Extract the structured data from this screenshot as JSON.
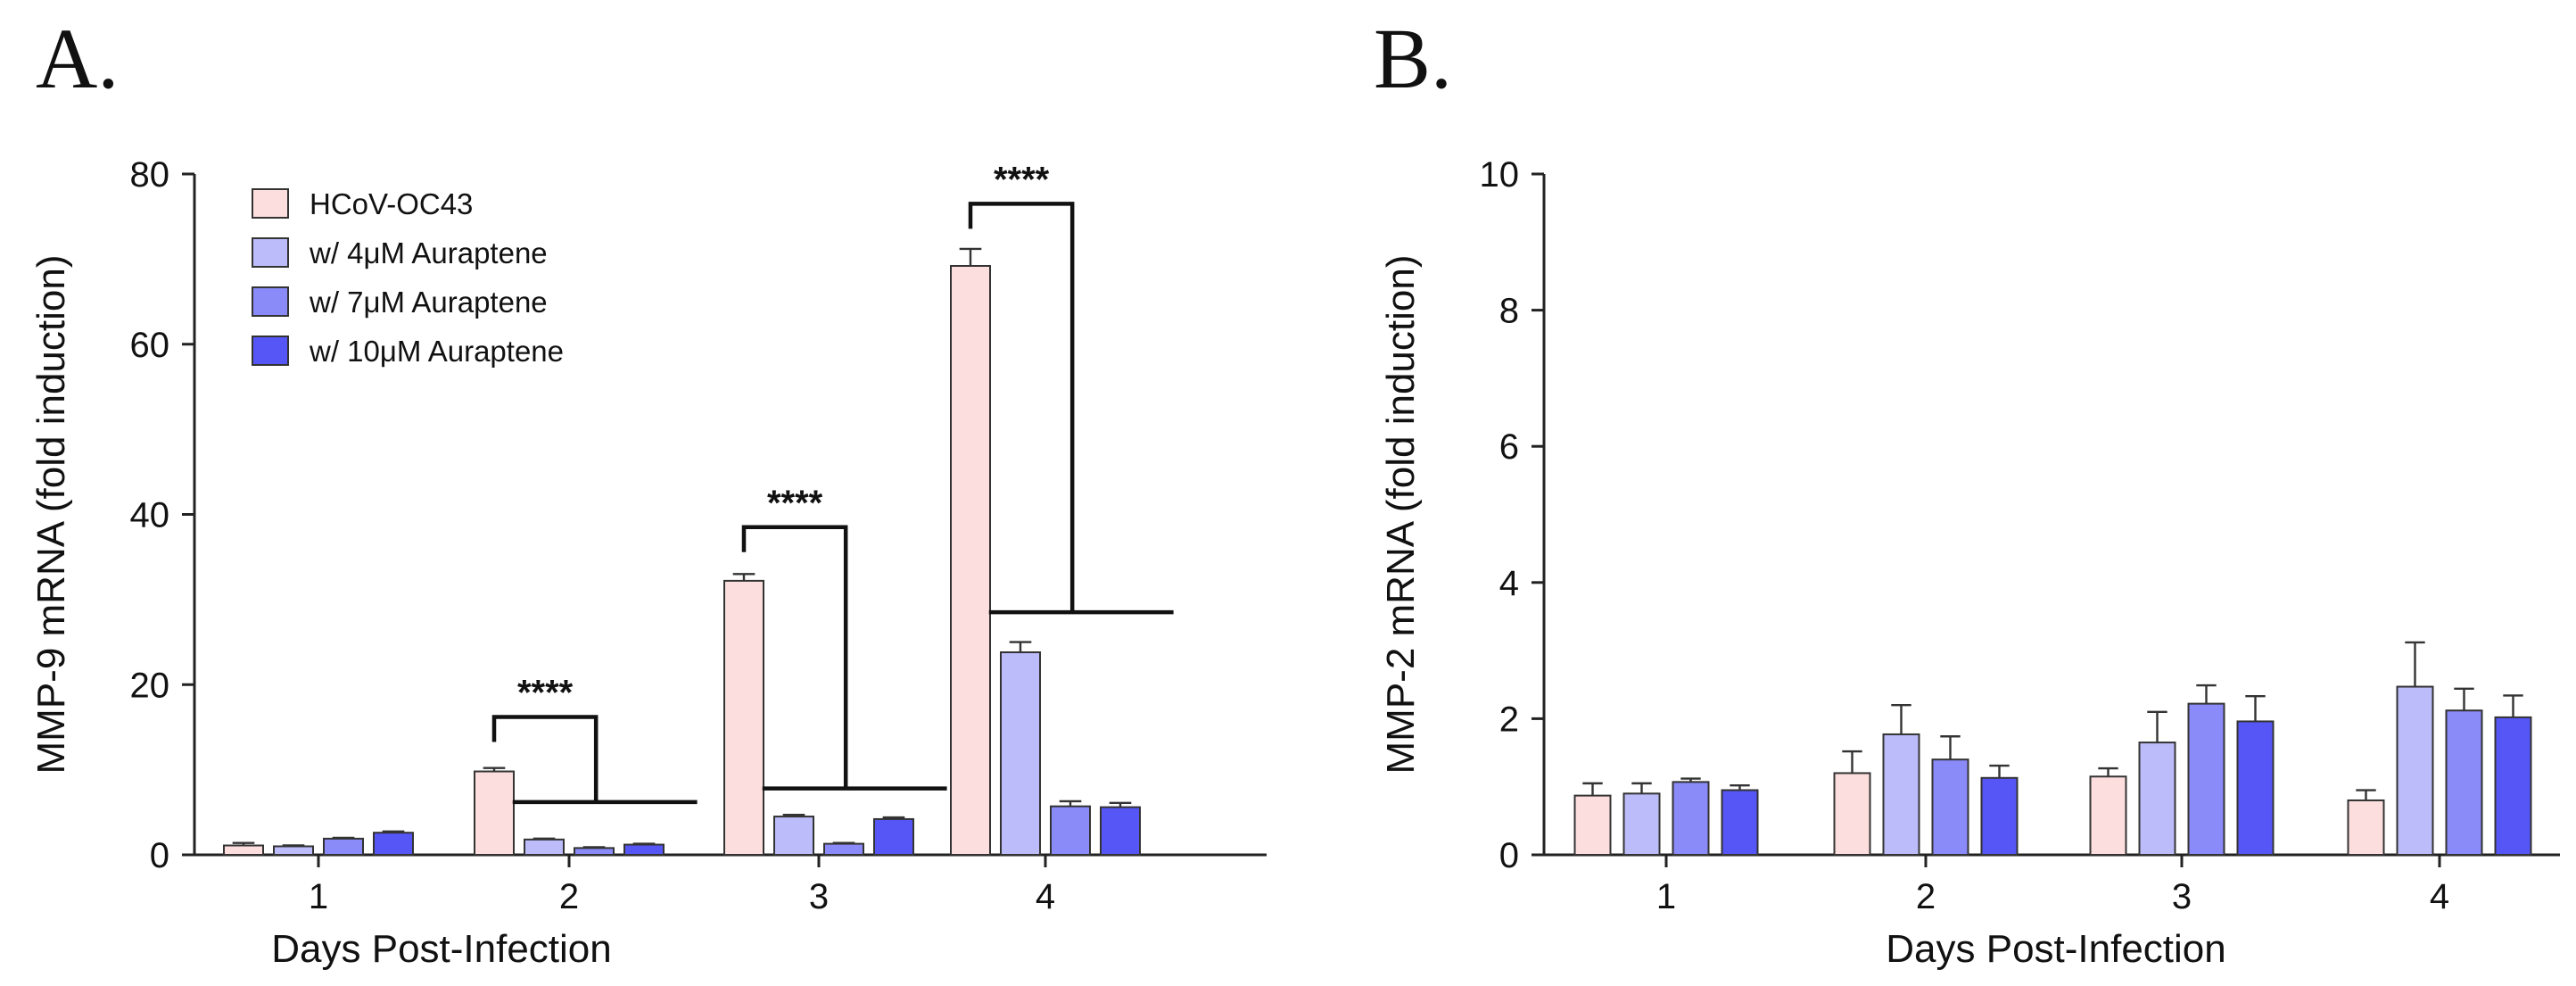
{
  "chart_data": [
    {
      "panel": "A.",
      "type": "bar",
      "xlabel": "Days Post-Infection",
      "ylabel": "MMP-9 mRNA (fold induction)",
      "ylim": [
        0,
        80
      ],
      "yticks": [
        0,
        20,
        40,
        60,
        80
      ],
      "categories": [
        "1",
        "2",
        "3",
        "4"
      ],
      "legend_position": "top-left",
      "series": [
        {
          "name": "HCoV-OC43",
          "color": "#fddede",
          "values": [
            1.1,
            9.8,
            32.2,
            69.2
          ],
          "errors": [
            0.3,
            0.4,
            0.8,
            2.0
          ]
        },
        {
          "name": "w/ 4μM Auraptene",
          "color": "#bcbcfa",
          "values": [
            1.0,
            1.8,
            4.5,
            23.8
          ],
          "errors": [
            0.1,
            0.1,
            0.2,
            1.2
          ]
        },
        {
          "name": "w/ 7μM Auraptene",
          "color": "#8a8af8",
          "values": [
            1.9,
            0.8,
            1.3,
            5.7
          ],
          "errors": [
            0.1,
            0.1,
            0.1,
            0.6
          ]
        },
        {
          "name": "w/ 10μM Auraptene",
          "color": "#5656f6",
          "values": [
            2.6,
            1.2,
            4.2,
            5.6
          ],
          "errors": [
            0.15,
            0.1,
            0.2,
            0.5
          ]
        }
      ],
      "annotations": [
        {
          "category": "2",
          "text": "****",
          "left_y": 16.2,
          "right_y": 6.2
        },
        {
          "category": "3",
          "text": "****",
          "left_y": 38.5,
          "right_y": 7.8
        },
        {
          "category": "4",
          "text": "****",
          "left_y": 76.5,
          "right_y": 28.5
        }
      ]
    },
    {
      "panel": "B.",
      "type": "bar",
      "xlabel": "Days Post-Infection",
      "ylabel": "MMP-2 mRNA (fold induction)",
      "ylim": [
        0,
        10
      ],
      "yticks": [
        0,
        2,
        4,
        6,
        8,
        10
      ],
      "categories": [
        "1",
        "2",
        "3",
        "4"
      ],
      "series": [
        {
          "name": "HCoV-OC43",
          "color": "#fddede",
          "values": [
            0.87,
            1.2,
            1.15,
            0.8
          ],
          "errors": [
            0.18,
            0.32,
            0.12,
            0.15
          ]
        },
        {
          "name": "w/ 4μM Auraptene",
          "color": "#bcbcfa",
          "values": [
            0.9,
            1.77,
            1.65,
            2.47
          ],
          "errors": [
            0.15,
            0.43,
            0.45,
            0.65
          ]
        },
        {
          "name": "w/ 7μM Auraptene",
          "color": "#8a8af8",
          "values": [
            1.07,
            1.4,
            2.22,
            2.12
          ],
          "errors": [
            0.05,
            0.34,
            0.27,
            0.32
          ]
        },
        {
          "name": "w/ 10μM Auraptene",
          "color": "#5656f6",
          "values": [
            0.95,
            1.13,
            1.96,
            2.02
          ],
          "errors": [
            0.07,
            0.18,
            0.37,
            0.32
          ]
        }
      ]
    }
  ]
}
